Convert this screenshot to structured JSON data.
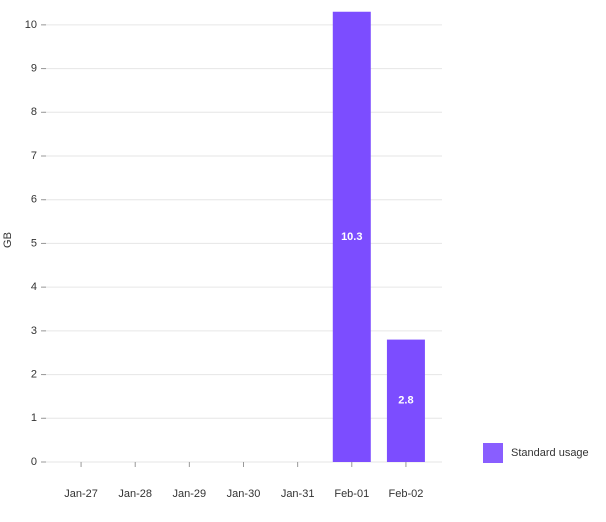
{
  "chart_data": {
    "type": "bar",
    "y_label": "GB",
    "categories": [
      "Jan-27",
      "Jan-28",
      "Jan-29",
      "Jan-30",
      "Jan-31",
      "Feb-01",
      "Feb-02"
    ],
    "series": [
      {
        "name": "Standard usage",
        "color": "#7c4dff",
        "values": [
          null,
          null,
          null,
          null,
          null,
          10.3,
          2.8
        ]
      }
    ],
    "ylim": [
      0,
      10.5
    ],
    "yticks": [
      0,
      1,
      2,
      3,
      4,
      5,
      6,
      7,
      8,
      9,
      10
    ],
    "grid": true,
    "legend": "right"
  }
}
